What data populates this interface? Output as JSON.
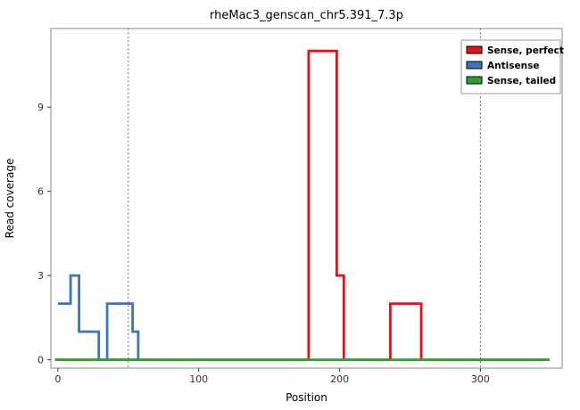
{
  "title": "rheMac3_genscan_chr5.391_7.3p",
  "chart_data": {
    "type": "line",
    "subtype": "step",
    "title": "rheMac3_genscan_chr5.391_7.3p",
    "xlabel": "Position",
    "ylabel": "Read coverage",
    "xlim": [
      -5,
      358
    ],
    "ylim": [
      -0.3,
      11.8
    ],
    "xticks": [
      0,
      100,
      200,
      300
    ],
    "yticks": [
      0,
      3,
      6,
      9
    ],
    "grid": false,
    "reference_vlines": [
      50,
      300
    ],
    "panel_border_color": "#888888",
    "vline_color": "#444444",
    "tick_label_color": "#333333",
    "legend": {
      "position": "top-right",
      "entries": [
        {
          "label": "Sense, perfect",
          "color": "#e31219"
        },
        {
          "label": "Antisense",
          "color": "#3d76b8"
        },
        {
          "label": "Sense, tailed",
          "color": "#2fa12e"
        }
      ]
    },
    "series": [
      {
        "name": "Sense, perfect",
        "color": "#e31219",
        "step": "after",
        "points": [
          [
            -2,
            0
          ],
          [
            178,
            11
          ],
          [
            198,
            3
          ],
          [
            203,
            0
          ],
          [
            236,
            2
          ],
          [
            258,
            0
          ],
          [
            349,
            0
          ]
        ]
      },
      {
        "name": "Antisense",
        "color": "#3d76b8",
        "step": "after",
        "points": [
          [
            0,
            2
          ],
          [
            9,
            3
          ],
          [
            15,
            1
          ],
          [
            29,
            0
          ],
          [
            35,
            2
          ],
          [
            53,
            1
          ],
          [
            57,
            0
          ],
          [
            62,
            0
          ]
        ]
      },
      {
        "name": "Sense, tailed",
        "color": "#2fa12e",
        "step": "after",
        "points": [
          [
            -2,
            0
          ],
          [
            349,
            0
          ]
        ]
      }
    ]
  }
}
